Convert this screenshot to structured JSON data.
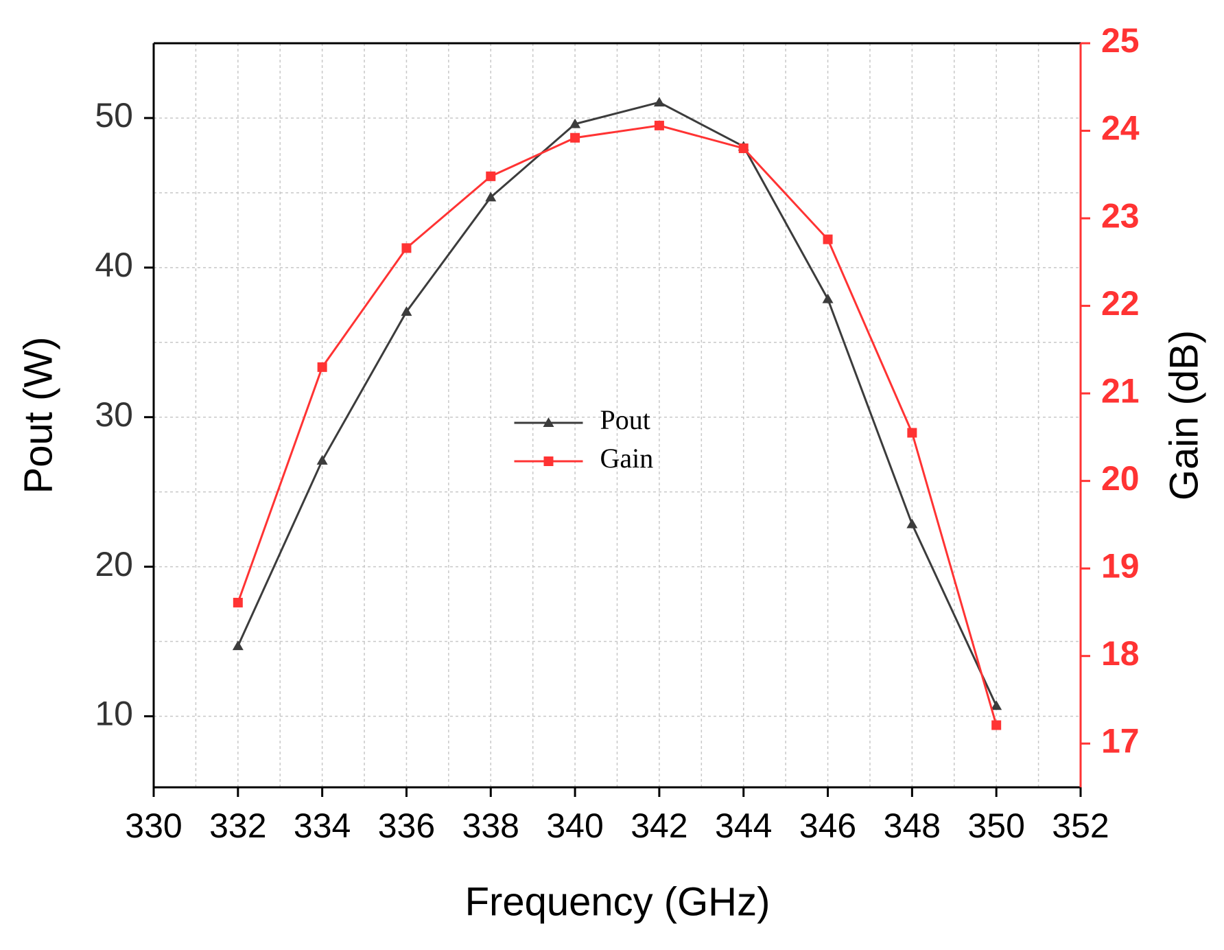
{
  "chart_data": {
    "type": "line",
    "x_label": "Frequency (GHz)",
    "y_label": "Pout (W)",
    "y2_label": "Gain (dB)",
    "x": [
      332,
      334,
      336,
      338,
      340,
      342,
      344,
      346,
      348,
      350
    ],
    "series": [
      {
        "name": "Pout",
        "color": "#3c3c3c",
        "marker": "triangle",
        "axis": "y",
        "values": [
          14.7,
          27.1,
          37.05,
          44.7,
          49.6,
          51.05,
          48.1,
          37.9,
          22.85,
          10.7
        ]
      },
      {
        "name": "Gain",
        "color": "#ff3333",
        "marker": "square",
        "axis": "y2",
        "values": [
          18.61,
          21.3,
          22.66,
          23.48,
          23.92,
          24.06,
          23.8,
          22.76,
          20.55,
          17.21
        ]
      }
    ],
    "xlim": [
      330,
      352
    ],
    "xticks": [
      330,
      332,
      334,
      336,
      338,
      340,
      342,
      344,
      346,
      348,
      350,
      352
    ],
    "ylim": [
      5.25,
      55
    ],
    "yticks": [
      10,
      20,
      30,
      40,
      50
    ],
    "y2lim": [
      16.5,
      25
    ],
    "y2ticks": [
      17,
      18,
      19,
      20,
      21,
      22,
      23,
      24,
      25
    ],
    "y2_color": "#ff3333",
    "grid": true,
    "legend": "center"
  }
}
